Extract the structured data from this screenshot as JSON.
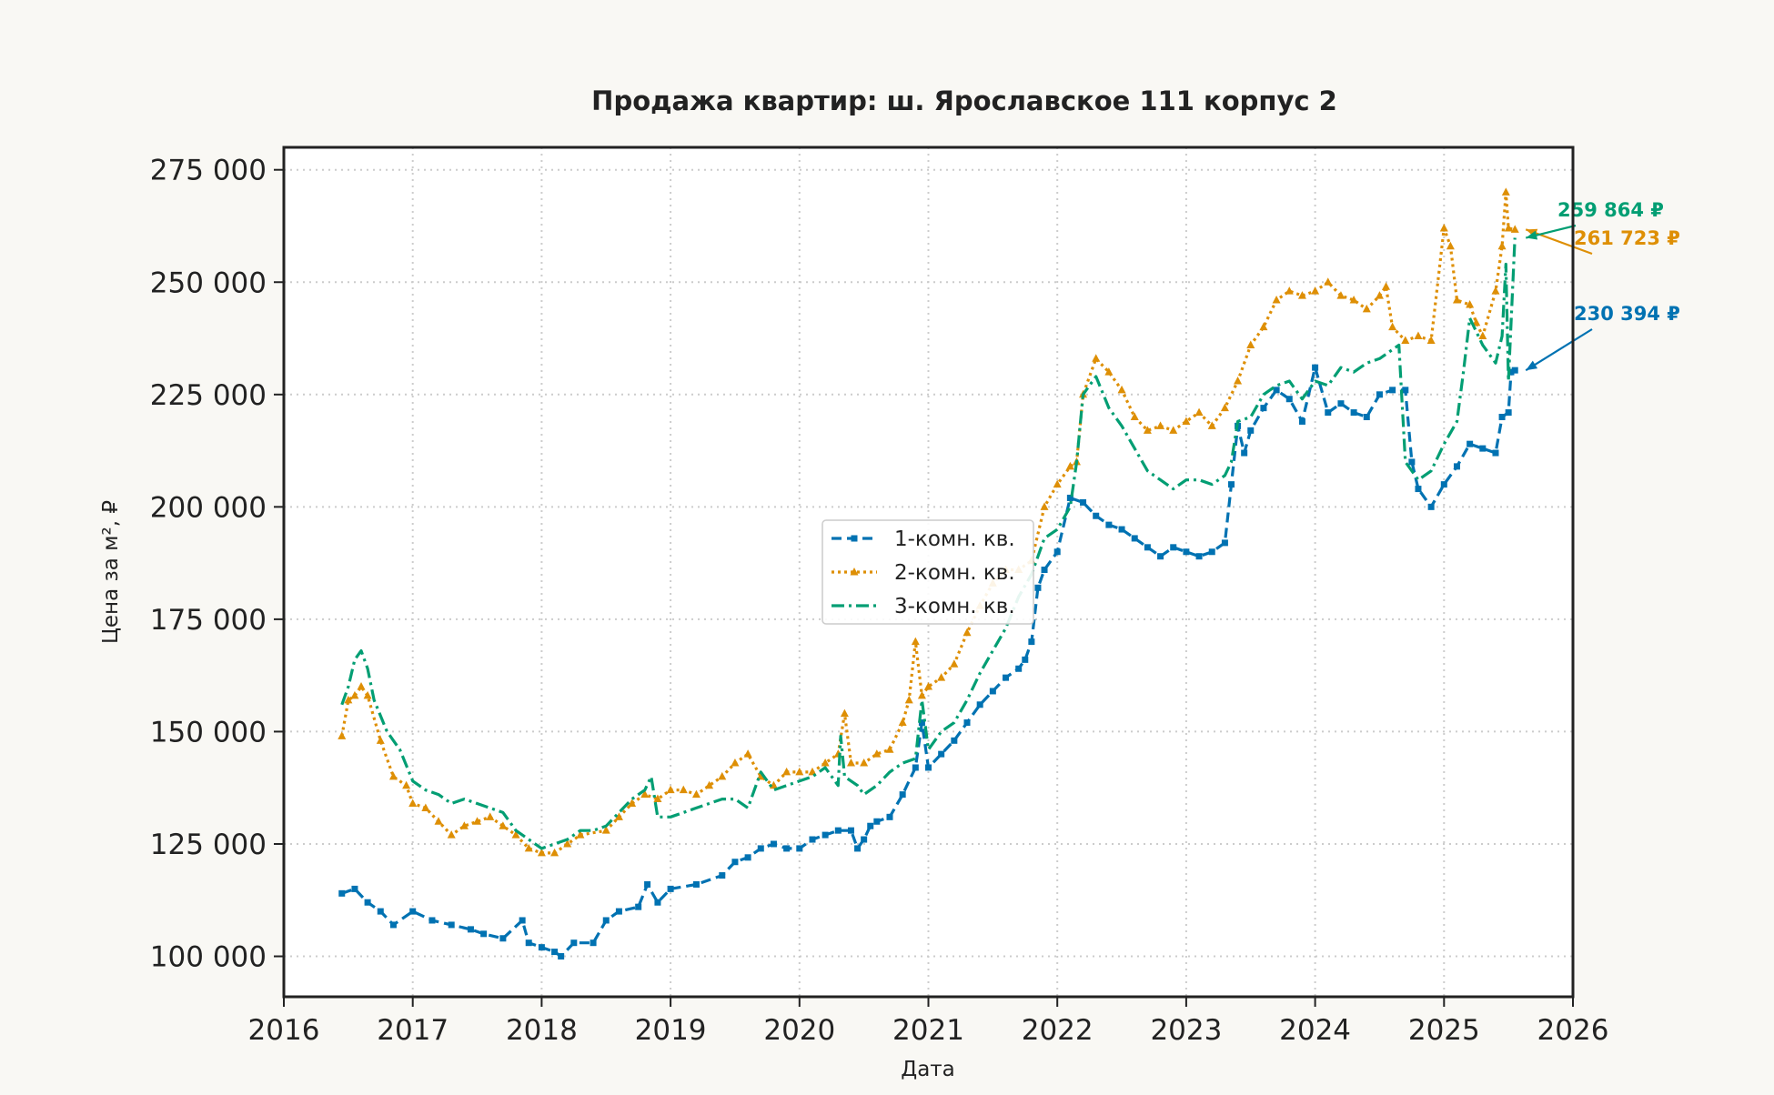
{
  "chart_data": {
    "type": "line",
    "title": "Продажа квартир: ш. Ярославское 111 корпус 2",
    "xlabel": "Дата",
    "ylabel": "Цена за м², ₽",
    "xlim": [
      2016.0,
      2026.0
    ],
    "ylim": [
      91000,
      280000
    ],
    "x_ticks": [
      "2016",
      "2017",
      "2018",
      "2019",
      "2020",
      "2021",
      "2022",
      "2023",
      "2024",
      "2025",
      "2026"
    ],
    "y_ticks": [
      {
        "value": 100000,
        "label": "100 000"
      },
      {
        "value": 125000,
        "label": "125 000"
      },
      {
        "value": 150000,
        "label": "150 000"
      },
      {
        "value": 175000,
        "label": "175 000"
      },
      {
        "value": 200000,
        "label": "200 000"
      },
      {
        "value": 225000,
        "label": "225 000"
      },
      {
        "value": 250000,
        "label": "250 000"
      },
      {
        "value": 275000,
        "label": "275 000"
      }
    ],
    "grid": true,
    "legend_position": "center",
    "series": [
      {
        "name": "1-комн. кв.",
        "color": "#0072b2",
        "dash": "dashed",
        "marker": "square",
        "x": [
          2016.45,
          2016.55,
          2016.65,
          2016.75,
          2016.85,
          2017.0,
          2017.15,
          2017.3,
          2017.45,
          2017.55,
          2017.7,
          2017.85,
          2017.9,
          2018.0,
          2018.1,
          2018.15,
          2018.25,
          2018.4,
          2018.5,
          2018.6,
          2018.75,
          2018.82,
          2018.9,
          2019.0,
          2019.2,
          2019.4,
          2019.5,
          2019.6,
          2019.7,
          2019.8,
          2019.9,
          2020.0,
          2020.1,
          2020.2,
          2020.3,
          2020.4,
          2020.45,
          2020.5,
          2020.55,
          2020.6,
          2020.7,
          2020.8,
          2020.9,
          2020.95,
          2021.0,
          2021.1,
          2021.2,
          2021.3,
          2021.4,
          2021.5,
          2021.6,
          2021.7,
          2021.75,
          2021.8,
          2021.85,
          2021.9,
          2022.0,
          2022.1,
          2022.2,
          2022.3,
          2022.4,
          2022.5,
          2022.6,
          2022.7,
          2022.8,
          2022.9,
          2023.0,
          2023.1,
          2023.2,
          2023.3,
          2023.35,
          2023.4,
          2023.45,
          2023.5,
          2023.6,
          2023.7,
          2023.8,
          2023.9,
          2024.0,
          2024.1,
          2024.2,
          2024.3,
          2024.4,
          2024.5,
          2024.6,
          2024.7,
          2024.75,
          2024.8,
          2024.9,
          2025.0,
          2025.1,
          2025.2,
          2025.3,
          2025.4,
          2025.45,
          2025.5,
          2025.52,
          2025.55
        ],
        "y": [
          114000,
          115000,
          112000,
          110000,
          107000,
          110000,
          108000,
          107000,
          106000,
          105000,
          104000,
          108000,
          103000,
          102000,
          101000,
          100000,
          103000,
          103000,
          108000,
          110000,
          111000,
          116000,
          112000,
          115000,
          116000,
          118000,
          121000,
          122000,
          124000,
          125000,
          124000,
          124000,
          126000,
          127000,
          128000,
          128000,
          124000,
          126000,
          129000,
          130000,
          131000,
          136000,
          142000,
          152000,
          142000,
          145000,
          148000,
          152000,
          156000,
          159000,
          162000,
          164000,
          166000,
          170000,
          182000,
          186000,
          190000,
          202000,
          201000,
          198000,
          196000,
          195000,
          193000,
          191000,
          189000,
          191000,
          190000,
          189000,
          190000,
          192000,
          205000,
          218000,
          212000,
          217000,
          222000,
          226000,
          224000,
          219000,
          231000,
          221000,
          223000,
          221000,
          220000,
          225000,
          226000,
          226000,
          210000,
          204000,
          200000,
          205000,
          209000,
          214000,
          213000,
          212000,
          220000,
          221000,
          230000,
          230394
        ]
      },
      {
        "name": "2-комн. кв.",
        "color": "#de8f05",
        "dash": "dotted",
        "marker": "triangle",
        "x": [
          2016.45,
          2016.5,
          2016.55,
          2016.6,
          2016.65,
          2016.75,
          2016.85,
          2016.95,
          2017.0,
          2017.1,
          2017.2,
          2017.3,
          2017.4,
          2017.5,
          2017.6,
          2017.7,
          2017.8,
          2017.9,
          2018.0,
          2018.1,
          2018.2,
          2018.3,
          2018.5,
          2018.6,
          2018.7,
          2018.8,
          2018.9,
          2019.0,
          2019.1,
          2019.2,
          2019.3,
          2019.4,
          2019.5,
          2019.6,
          2019.7,
          2019.8,
          2019.9,
          2020.0,
          2020.1,
          2020.2,
          2020.3,
          2020.35,
          2020.4,
          2020.5,
          2020.6,
          2020.7,
          2020.8,
          2020.85,
          2020.9,
          2020.95,
          2021.0,
          2021.1,
          2021.2,
          2021.3,
          2021.4,
          2021.5,
          2021.6,
          2021.7,
          2021.8,
          2021.9,
          2022.0,
          2022.1,
          2022.15,
          2022.2,
          2022.3,
          2022.4,
          2022.5,
          2022.6,
          2022.7,
          2022.8,
          2022.9,
          2023.0,
          2023.1,
          2023.2,
          2023.3,
          2023.4,
          2023.5,
          2023.6,
          2023.7,
          2023.8,
          2023.9,
          2024.0,
          2024.1,
          2024.2,
          2024.3,
          2024.4,
          2024.5,
          2024.55,
          2024.6,
          2024.7,
          2024.8,
          2024.9,
          2025.0,
          2025.05,
          2025.1,
          2025.2,
          2025.25,
          2025.3,
          2025.4,
          2025.45,
          2025.48,
          2025.5,
          2025.55
        ],
        "y": [
          149000,
          157000,
          158000,
          160000,
          158000,
          148000,
          140000,
          138000,
          134000,
          133000,
          130000,
          127000,
          129000,
          130000,
          131000,
          129000,
          127000,
          124000,
          123000,
          123000,
          125000,
          127000,
          128000,
          131000,
          134000,
          136000,
          135000,
          137000,
          137000,
          136000,
          138000,
          140000,
          143000,
          145000,
          140000,
          138000,
          141000,
          141000,
          141000,
          143000,
          145000,
          154000,
          143000,
          143000,
          145000,
          146000,
          152000,
          157000,
          170000,
          158000,
          160000,
          162000,
          165000,
          172000,
          178000,
          183000,
          186000,
          186000,
          188000,
          200000,
          205000,
          209000,
          210000,
          225000,
          233000,
          230000,
          226000,
          220000,
          217000,
          218000,
          217000,
          219000,
          221000,
          218000,
          222000,
          228000,
          236000,
          240000,
          246000,
          248000,
          247000,
          248000,
          250000,
          247000,
          246000,
          244000,
          247000,
          249000,
          240000,
          237000,
          238000,
          237000,
          262000,
          258000,
          246000,
          245000,
          241000,
          238000,
          248000,
          258000,
          270000,
          262000,
          261723
        ]
      },
      {
        "name": "3-комн. кв.",
        "color": "#029e73",
        "dash": "dashdot",
        "marker": "none",
        "x": [
          2016.45,
          2016.5,
          2016.55,
          2016.6,
          2016.65,
          2016.7,
          2016.8,
          2016.9,
          2017.0,
          2017.1,
          2017.2,
          2017.3,
          2017.4,
          2017.5,
          2017.6,
          2017.7,
          2017.8,
          2017.9,
          2018.0,
          2018.1,
          2018.2,
          2018.3,
          2018.4,
          2018.5,
          2018.6,
          2018.7,
          2018.8,
          2018.85,
          2018.9,
          2019.0,
          2019.1,
          2019.2,
          2019.3,
          2019.4,
          2019.5,
          2019.6,
          2019.7,
          2019.8,
          2019.9,
          2020.0,
          2020.1,
          2020.2,
          2020.3,
          2020.32,
          2020.35,
          2020.45,
          2020.5,
          2020.6,
          2020.7,
          2020.8,
          2020.9,
          2020.95,
          2021.0,
          2021.1,
          2021.2,
          2021.3,
          2021.4,
          2021.5,
          2021.6,
          2021.7,
          2021.8,
          2021.9,
          2022.0,
          2022.1,
          2022.15,
          2022.2,
          2022.3,
          2022.4,
          2022.5,
          2022.6,
          2022.7,
          2022.8,
          2022.9,
          2023.0,
          2023.1,
          2023.2,
          2023.3,
          2023.35,
          2023.4,
          2023.5,
          2023.6,
          2023.7,
          2023.8,
          2023.9,
          2024.0,
          2024.1,
          2024.2,
          2024.3,
          2024.4,
          2024.5,
          2024.6,
          2024.65,
          2024.7,
          2024.8,
          2024.9,
          2025.0,
          2025.1,
          2025.15,
          2025.2,
          2025.3,
          2025.4,
          2025.45,
          2025.48,
          2025.5,
          2025.55
        ],
        "y": [
          156000,
          160000,
          166000,
          168000,
          164000,
          157000,
          150000,
          146000,
          139000,
          137000,
          136000,
          134000,
          135000,
          134000,
          133000,
          132000,
          128000,
          126000,
          124000,
          125000,
          126000,
          128000,
          128000,
          129000,
          132000,
          135000,
          137000,
          140000,
          131000,
          131000,
          132000,
          133000,
          134000,
          135000,
          135000,
          133000,
          141000,
          137000,
          138000,
          139000,
          140000,
          142000,
          138000,
          149000,
          140000,
          138000,
          136000,
          138000,
          141000,
          143000,
          144000,
          157000,
          146000,
          150000,
          152000,
          157000,
          163000,
          168000,
          173000,
          180000,
          185000,
          193000,
          195000,
          200000,
          210000,
          225000,
          229000,
          222000,
          218000,
          213000,
          208000,
          206000,
          204000,
          206000,
          206000,
          205000,
          207000,
          210000,
          219000,
          220000,
          225000,
          227000,
          228000,
          224000,
          228000,
          227000,
          231000,
          230000,
          232000,
          233000,
          235000,
          236000,
          210000,
          206000,
          208000,
          214000,
          219000,
          230000,
          242000,
          236000,
          232000,
          238000,
          254000,
          228000,
          259864
        ]
      }
    ],
    "annotations": [
      {
        "series": "1-комн. кв.",
        "label": "230 394 ₽",
        "color": "#0072b2"
      },
      {
        "series": "2-комн. кв.",
        "label": "261 723 ₽",
        "color": "#de8f05"
      },
      {
        "series": "3-комн. кв.",
        "label": "259 864 ₽",
        "color": "#029e73"
      }
    ]
  }
}
